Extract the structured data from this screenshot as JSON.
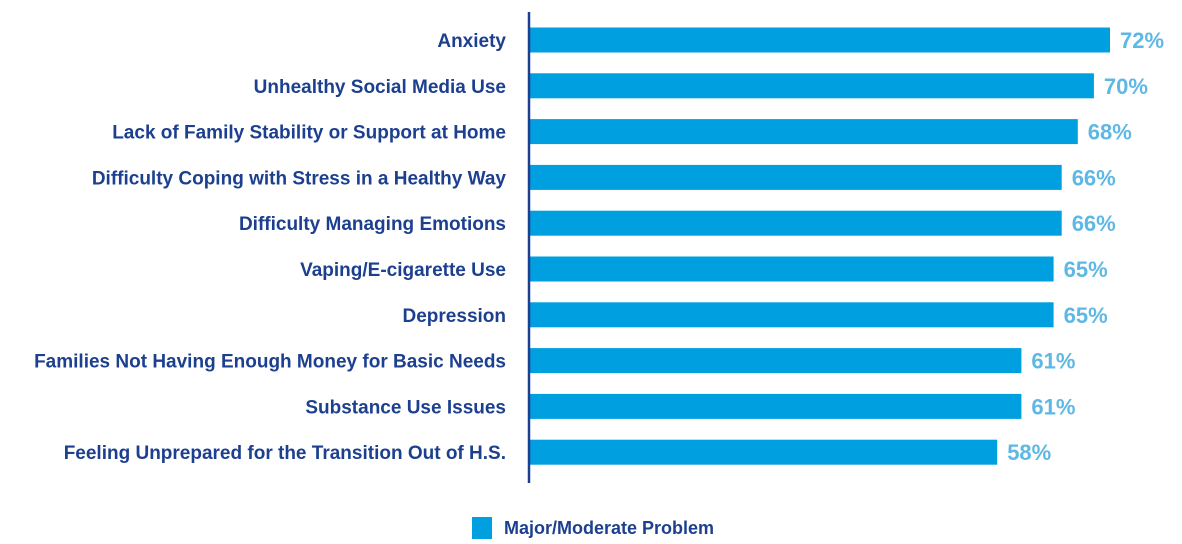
{
  "chart_data": {
    "type": "bar",
    "orientation": "horizontal",
    "categories": [
      "Anxiety",
      "Unhealthy Social Media Use",
      "Lack of Family Stability or Support at Home",
      "Difficulty Coping with Stress in a Healthy Way",
      "Difficulty Managing Emotions",
      "Vaping/E-cigarette Use",
      "Depression",
      "Families Not Having Enough Money for Basic Needs",
      "Substance Use Issues",
      "Feeling Unprepared for the Transition Out of H.S."
    ],
    "series": [
      {
        "name": "Major/Moderate Problem",
        "values": [
          72,
          70,
          68,
          66,
          66,
          65,
          65,
          61,
          61,
          58
        ],
        "labels": [
          "72%",
          "70%",
          "68%",
          "66%",
          "66%",
          "65%",
          "65%",
          "61%",
          "61%",
          "58%"
        ]
      }
    ],
    "xlim": [
      0,
      72
    ],
    "grid": false,
    "legend": "bottom-center",
    "colors": {
      "bar": "#009fdf",
      "value_label": "#5fb8e4",
      "category_label": "#1c3f8f",
      "axis": "#1c3f8f",
      "legend_text": "#1c3f8f"
    }
  }
}
